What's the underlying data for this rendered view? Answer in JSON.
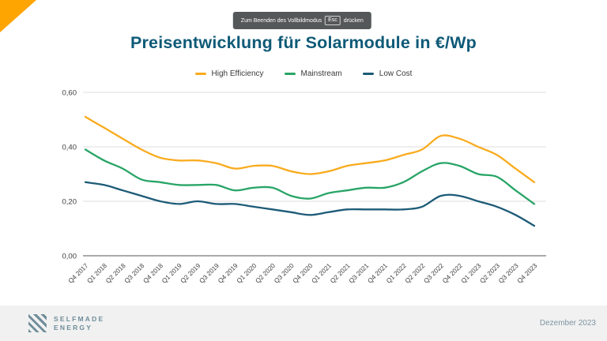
{
  "fullscreen_toast": {
    "text_before": "Zum Beenden des Vollbildmodus",
    "key": "Esc",
    "text_after": "drücken"
  },
  "slide": {
    "title": "Preisentwicklung für Solarmodule in €/Wp"
  },
  "footer": {
    "logo_line1": "SELFMADE",
    "logo_line2": "ENERGY",
    "date": "Dezember 2023"
  },
  "colors": {
    "accent_triangle": "#FFA502",
    "title": "#0E5A77",
    "gridline": "#DDDDDD",
    "axis_line": "#8F8F8F",
    "tick_text": "#3D3D3D"
  },
  "chart_data": {
    "type": "line",
    "title": "Preisentwicklung für Solarmodule in €/Wp",
    "categories": [
      "Q4 2017",
      "Q1 2018",
      "Q2 2018",
      "Q3 2018",
      "Q4 2018",
      "Q1 2019",
      "Q2 2019",
      "Q3 2019",
      "Q4 2019",
      "Q1 2020",
      "Q2 2020",
      "Q3 2020",
      "Q4 2020",
      "Q1 2021",
      "Q2 2021",
      "Q3 2021",
      "Q4 2021",
      "Q1 2022",
      "Q2 2022",
      "Q3 2022",
      "Q4 2022",
      "Q1 2023",
      "Q2 2023",
      "Q3 2023",
      "Q4 2023"
    ],
    "series": [
      {
        "name": "High Efficiency",
        "color": "#F9AB1E",
        "values": [
          0.51,
          0.47,
          0.43,
          0.39,
          0.36,
          0.35,
          0.35,
          0.34,
          0.32,
          0.33,
          0.33,
          0.31,
          0.3,
          0.31,
          0.33,
          0.34,
          0.35,
          0.37,
          0.39,
          0.44,
          0.43,
          0.4,
          0.37,
          0.32,
          0.27
        ]
      },
      {
        "name": "Mainstream",
        "color": "#28A567",
        "values": [
          0.39,
          0.35,
          0.32,
          0.28,
          0.27,
          0.26,
          0.26,
          0.26,
          0.24,
          0.25,
          0.25,
          0.22,
          0.21,
          0.23,
          0.24,
          0.25,
          0.25,
          0.27,
          0.31,
          0.34,
          0.33,
          0.3,
          0.29,
          0.24,
          0.19
        ]
      },
      {
        "name": "Low Cost",
        "color": "#1D5B77",
        "values": [
          0.27,
          0.26,
          0.24,
          0.22,
          0.2,
          0.19,
          0.2,
          0.19,
          0.19,
          0.18,
          0.17,
          0.16,
          0.15,
          0.16,
          0.17,
          0.17,
          0.17,
          0.17,
          0.18,
          0.22,
          0.22,
          0.2,
          0.18,
          0.15,
          0.11
        ]
      }
    ],
    "ylim": [
      0,
      0.6
    ],
    "yticks": [
      0,
      0.2,
      0.4,
      0.6
    ],
    "ytick_labels": [
      "0,00",
      "0,20",
      "0,40",
      "0,60"
    ],
    "grid": true,
    "legend_position": "top",
    "ylabel": "",
    "xlabel": ""
  }
}
